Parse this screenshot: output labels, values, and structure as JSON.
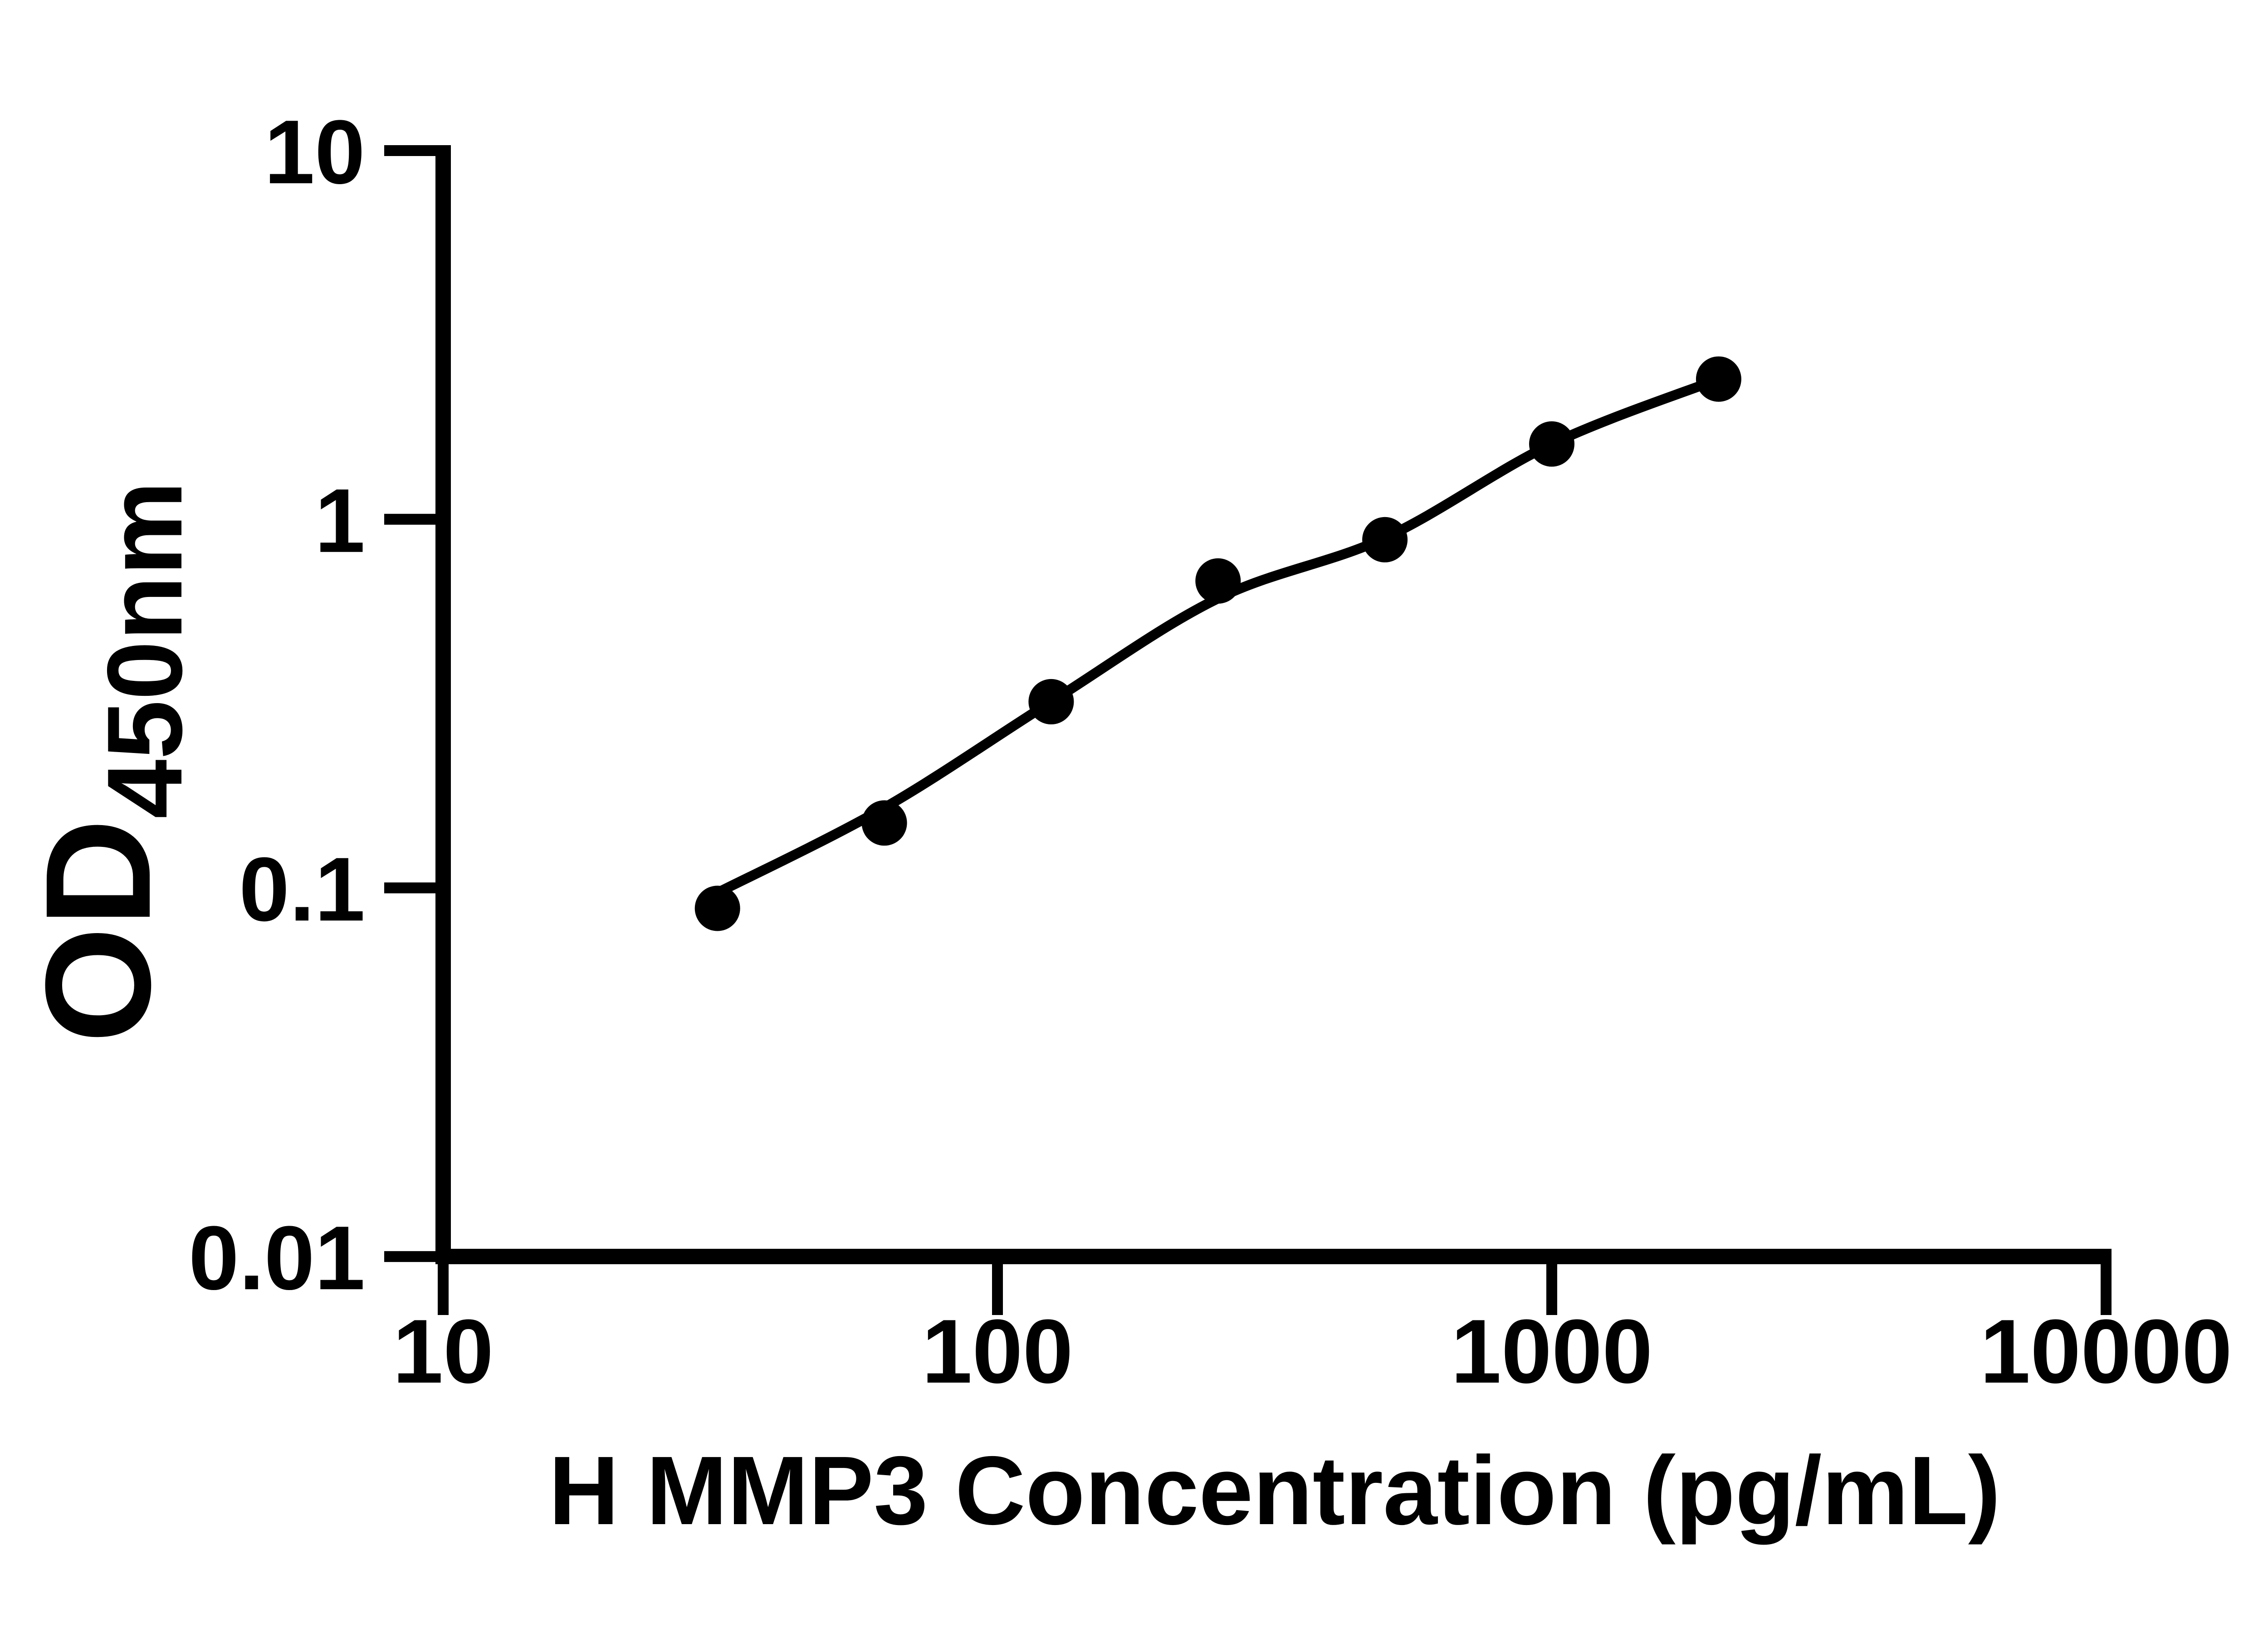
{
  "figure": {
    "background_color": "#ffffff",
    "ink_color": "#000000",
    "description": "ELISA standard curve, log-log scatter plot with fitted line"
  },
  "chart_data": {
    "type": "scatter",
    "title": "",
    "xlabel": "H MMP3 Concentration (pg/mL)",
    "ylabel": "OD450nm",
    "ylabel_main": "OD",
    "ylabel_sub": "450nm",
    "grid": false,
    "legend": null,
    "x_axis": {
      "scale": "log10",
      "min": 10,
      "max": 10000,
      "ticks": [
        {
          "value": 10,
          "label": "10"
        },
        {
          "value": 100,
          "label": "100"
        },
        {
          "value": 1000,
          "label": "1000"
        },
        {
          "value": 10000,
          "label": "10000"
        }
      ]
    },
    "y_axis": {
      "scale": "log10",
      "min": 0.01,
      "max": 10,
      "ticks": [
        {
          "value": 10,
          "label": "10"
        },
        {
          "value": 1,
          "label": "1"
        },
        {
          "value": 0.1,
          "label": "0.1"
        },
        {
          "value": 0.01,
          "label": "0.01"
        }
      ]
    },
    "series": [
      {
        "name": "standard-data-points",
        "kind": "scatter",
        "marker": "filled-circle",
        "color": "#000000",
        "points": [
          {
            "x": 31.25,
            "y": 0.088
          },
          {
            "x": 62.5,
            "y": 0.15
          },
          {
            "x": 125,
            "y": 0.32
          },
          {
            "x": 250,
            "y": 0.68
          },
          {
            "x": 500,
            "y": 0.88
          },
          {
            "x": 1000,
            "y": 1.6
          },
          {
            "x": 2000,
            "y": 2.4
          }
        ]
      },
      {
        "name": "fitted-curve",
        "kind": "line",
        "color": "#000000",
        "points": [
          {
            "x": 31.25,
            "y": 0.097
          },
          {
            "x": 62.5,
            "y": 0.165
          },
          {
            "x": 125,
            "y": 0.32
          },
          {
            "x": 250,
            "y": 0.61
          },
          {
            "x": 500,
            "y": 0.89
          },
          {
            "x": 1000,
            "y": 1.6
          },
          {
            "x": 2000,
            "y": 2.4
          }
        ]
      }
    ]
  }
}
